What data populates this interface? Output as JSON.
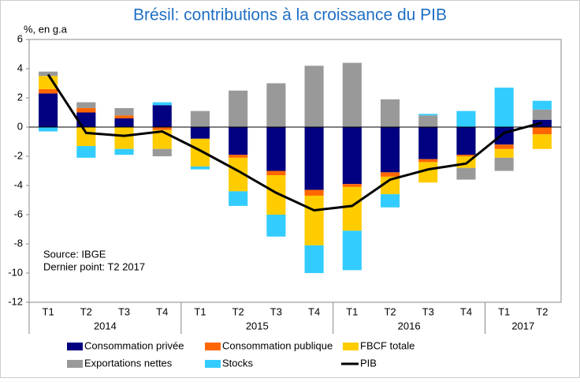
{
  "chart_data": {
    "type": "stacked_bar_line",
    "title": "Brésil: contributions à la croissance du PIB",
    "y_label": "%, en g.a",
    "annotations": [
      "Source: IBGE",
      "Dernier point: T2 2017"
    ],
    "categories": [
      "T1",
      "T2",
      "T3",
      "T4",
      "T1",
      "T2",
      "T3",
      "T4",
      "T1",
      "T2",
      "T3",
      "T4",
      "T1",
      "T2"
    ],
    "x_groups": [
      {
        "name": "2014",
        "count": 4
      },
      {
        "name": "2015",
        "count": 4
      },
      {
        "name": "2016",
        "count": 4
      },
      {
        "name": "2017",
        "count": 2
      }
    ],
    "series": [
      {
        "name": "Consommation privée",
        "color": "#000080",
        "values": [
          2.3,
          1.0,
          0.6,
          1.5,
          -0.8,
          -1.9,
          -3.0,
          -4.3,
          -3.9,
          -3.1,
          -2.2,
          -1.9,
          -1.2,
          0.5
        ]
      },
      {
        "name": "Consommation publique",
        "color": "#ff6600",
        "values": [
          0.3,
          0.3,
          0.2,
          -0.2,
          0,
          -0.2,
          -0.3,
          -0.4,
          -0.2,
          -0.3,
          -0.2,
          -0.1,
          -0.3,
          -0.5
        ]
      },
      {
        "name": "FBCF totale",
        "color": "#ffcc00",
        "values": [
          0.9,
          -1.3,
          -1.5,
          -1.3,
          -1.9,
          -2.3,
          -2.7,
          -3.4,
          -3.0,
          -1.2,
          -1.4,
          -0.8,
          -0.6,
          -1.0
        ]
      },
      {
        "name": "Exportations nettes",
        "color": "#999999",
        "values": [
          0.3,
          0.4,
          0.5,
          -0.5,
          1.1,
          2.5,
          3.0,
          4.2,
          4.4,
          1.9,
          0.8,
          -0.8,
          -0.9,
          0.7
        ]
      },
      {
        "name": "Stocks",
        "color": "#33ccff",
        "values": [
          -0.3,
          -0.8,
          -0.4,
          0.2,
          -0.2,
          -1.0,
          -1.5,
          -1.9,
          -2.7,
          -0.9,
          0.1,
          1.1,
          2.7,
          0.6
        ]
      },
      {
        "name": "PIB",
        "color": "#000000",
        "kind": "line",
        "values": [
          3.6,
          -0.4,
          -0.6,
          -0.3,
          -1.6,
          -3.0,
          -4.5,
          -5.7,
          -5.4,
          -3.6,
          -2.9,
          -2.5,
          -0.4,
          0.3
        ]
      }
    ],
    "ylim": [
      -12,
      6
    ],
    "yticks": [
      -12,
      -10,
      -8,
      -6,
      -4,
      -2,
      0,
      2,
      4,
      6
    ]
  }
}
